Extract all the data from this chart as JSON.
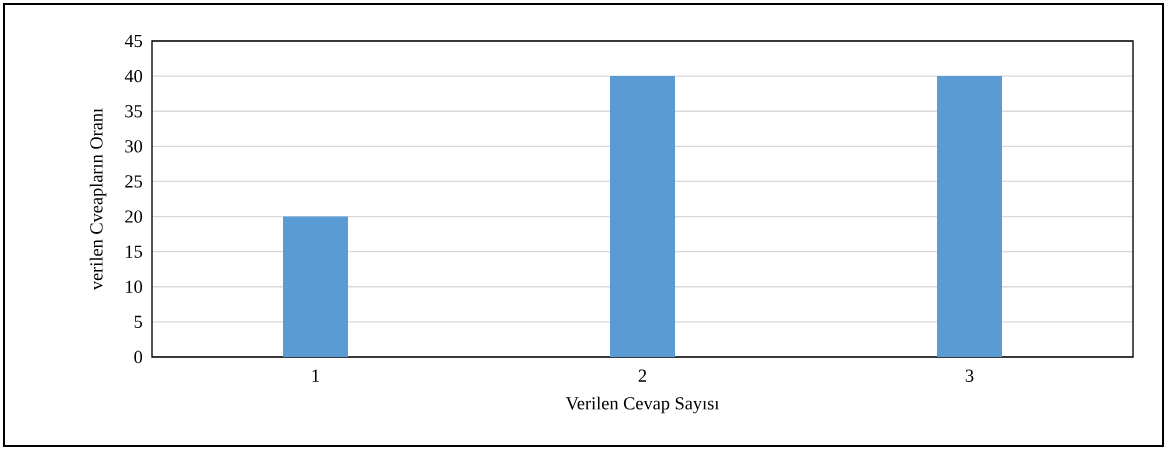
{
  "chart_data": {
    "type": "bar",
    "xlabel": "Verilen Cevap Sayısı",
    "ylabel": "verilen Cveapların Oranı",
    "categories": [
      "1",
      "2",
      "3"
    ],
    "values": [
      20,
      40,
      40
    ],
    "color": "#5b9bd5",
    "ylim": [
      0,
      45
    ],
    "yticks": [
      0,
      5,
      10,
      15,
      20,
      25,
      30,
      35,
      40,
      45
    ],
    "grid": "y"
  }
}
